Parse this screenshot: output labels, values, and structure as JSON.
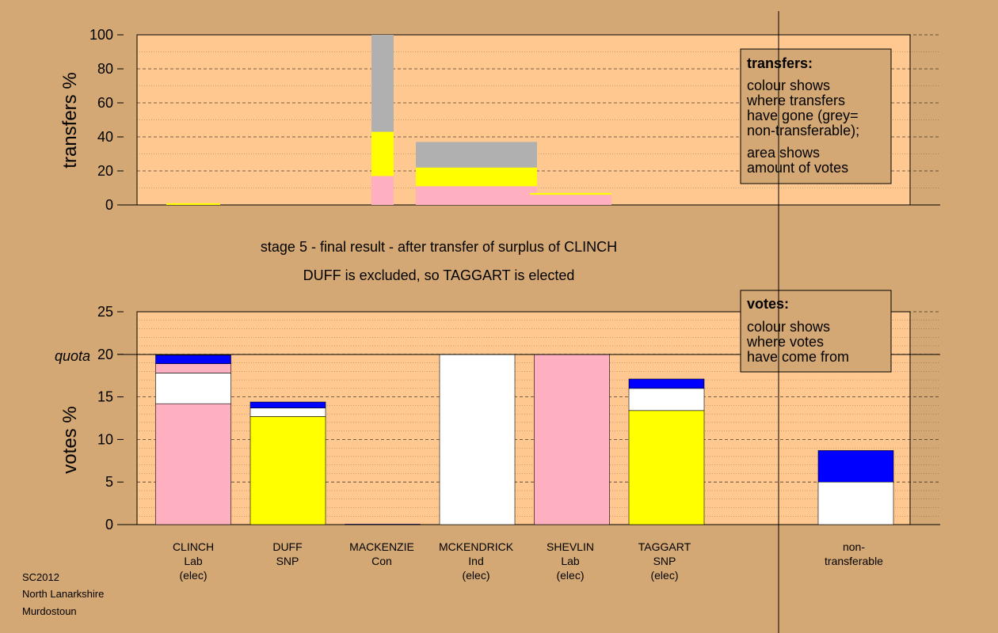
{
  "colors": {
    "background": "#d4a874",
    "plot_bg": "#ffc890",
    "lab": "#ffb0c0",
    "snp": "#ffff00",
    "ind": "#ffffff",
    "con": "#0000ff",
    "nontransferable": "#b0b0b0"
  },
  "stage": {
    "line1": "stage 5 - final result - after transfer of surplus of CLINCH",
    "line2": "DUFF is excluded, so TAGGART is elected"
  },
  "footer": {
    "line1": "SC2012",
    "line2": "North Lanarkshire",
    "line3": "Murdostoun"
  },
  "legend_transfers": {
    "title": "transfers:",
    "line1": "colour shows",
    "line2": "where transfers",
    "line3": "have gone (grey=",
    "line4": "non-transferable);",
    "line5": "area shows",
    "line6": "amount of votes"
  },
  "legend_votes": {
    "title": "votes:",
    "line1": "colour shows",
    "line2": "where votes",
    "line3": "have come from"
  },
  "candidates": [
    {
      "name": "CLINCH",
      "party": "Lab",
      "status": "(elec)"
    },
    {
      "name": "DUFF",
      "party": "SNP",
      "status": ""
    },
    {
      "name": "MACKENZIE",
      "party": "Con",
      "status": ""
    },
    {
      "name": "MCKENDRICK",
      "party": "Ind",
      "status": "(elec)"
    },
    {
      "name": "SHEVLIN",
      "party": "Lab",
      "status": "(elec)"
    },
    {
      "name": "TAGGART",
      "party": "SNP",
      "status": "(elec)"
    },
    {
      "name": "non-",
      "party": "transferable",
      "status": ""
    }
  ],
  "chart_data": [
    {
      "type": "bar",
      "ylabel": "transfers %",
      "ylim": [
        0,
        100
      ],
      "yticks": [
        0,
        20,
        40,
        60,
        80,
        100
      ],
      "grid": true,
      "bars": [
        {
          "column": 0,
          "width_fraction": 0.01,
          "segments": [
            {
              "color": "snp",
              "value": 1
            }
          ]
        },
        {
          "column": 2,
          "width_fraction": 0.29,
          "segments": [
            {
              "color": "lab",
              "value": 17
            },
            {
              "color": "snp",
              "value": 26
            },
            {
              "color": "nontransferable",
              "value": 57
            }
          ]
        },
        {
          "column": 3,
          "width_fraction": 1.0,
          "segments": [
            {
              "color": "lab",
              "value": 11
            },
            {
              "color": "snp",
              "value": 11
            },
            {
              "color": "nontransferable",
              "value": 15
            }
          ]
        },
        {
          "column": 4,
          "width_fraction": 1.0,
          "segments": [
            {
              "color": "lab",
              "value": 6
            },
            {
              "color": "snp",
              "value": 1
            }
          ]
        }
      ]
    },
    {
      "type": "bar",
      "ylabel": "votes %",
      "ylim": [
        0,
        25
      ],
      "yticks": [
        0,
        5,
        10,
        15,
        20,
        25
      ],
      "quota": 20,
      "quota_label": "quota",
      "grid": true,
      "bars": [
        {
          "column": 0,
          "segments": [
            {
              "color": "lab",
              "value": 14.2
            },
            {
              "color": "ind",
              "value": 3.6
            },
            {
              "color": "lab",
              "value": 1.1
            },
            {
              "color": "con",
              "value": 1.0
            }
          ]
        },
        {
          "column": 1,
          "segments": [
            {
              "color": "snp",
              "value": 12.7
            },
            {
              "color": "ind",
              "value": 1.0
            },
            {
              "color": "con",
              "value": 0.7
            }
          ]
        },
        {
          "column": 2,
          "segments": [
            {
              "color": "con",
              "value": 0.05
            }
          ]
        },
        {
          "column": 3,
          "segments": [
            {
              "color": "ind",
              "value": 20.0
            }
          ]
        },
        {
          "column": 4,
          "segments": [
            {
              "color": "lab",
              "value": 20.0
            }
          ]
        },
        {
          "column": 5,
          "segments": [
            {
              "color": "snp",
              "value": 13.4
            },
            {
              "color": "ind",
              "value": 2.6
            },
            {
              "color": "con",
              "value": 1.1
            }
          ]
        },
        {
          "column": 7,
          "segments": [
            {
              "color": "ind",
              "value": 5.0
            },
            {
              "color": "con",
              "value": 3.7
            }
          ]
        }
      ]
    }
  ]
}
